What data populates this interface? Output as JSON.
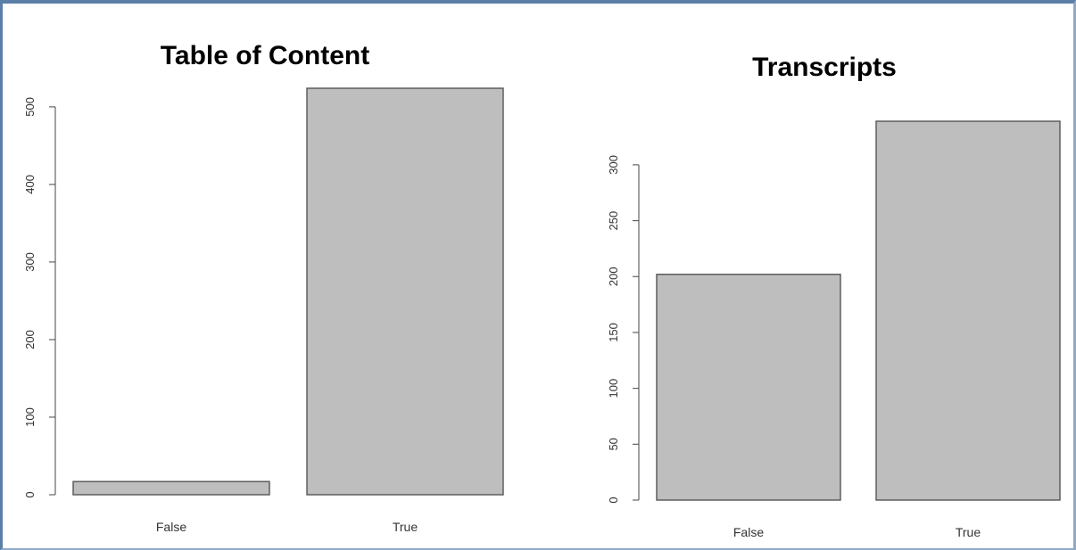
{
  "chart_data": [
    {
      "type": "bar",
      "title": "Table of Content",
      "categories": [
        "False",
        "True"
      ],
      "values": [
        17,
        524
      ],
      "yticks": [
        0,
        100,
        200,
        300,
        400,
        500
      ],
      "ylim": [
        0,
        524
      ],
      "xlabel": "",
      "ylabel": "",
      "grid": false,
      "colors": {
        "bar_fill": "#bebebe",
        "bar_stroke": "#555555"
      }
    },
    {
      "type": "bar",
      "title": "Transcripts",
      "categories": [
        "False",
        "True"
      ],
      "values": [
        202,
        339
      ],
      "yticks": [
        0,
        50,
        100,
        150,
        200,
        250,
        300
      ],
      "ylim": [
        0,
        339
      ],
      "xlabel": "",
      "ylabel": "",
      "grid": false,
      "colors": {
        "bar_fill": "#bebebe",
        "bar_stroke": "#555555"
      }
    }
  ]
}
